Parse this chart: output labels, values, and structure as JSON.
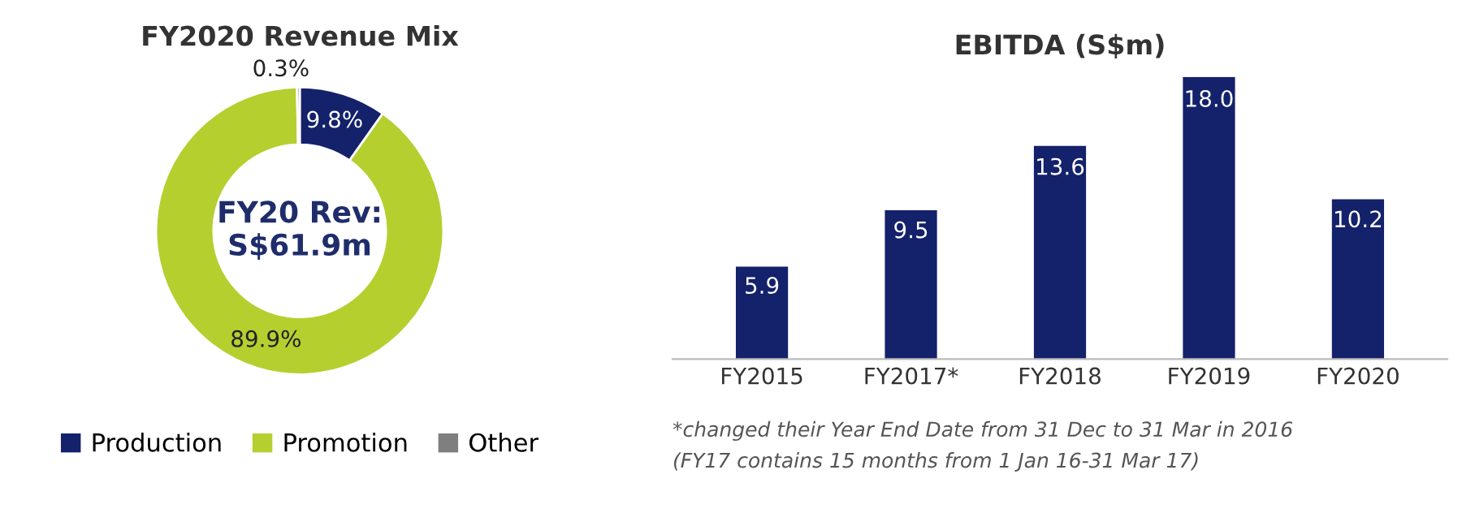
{
  "chart_data": [
    {
      "type": "donut",
      "title": "FY2020 Revenue Mix",
      "categories": [
        "Production",
        "Promotion",
        "Other"
      ],
      "values": [
        9.8,
        89.9,
        0.3
      ],
      "colors": [
        "#14216b",
        "#b5cf2f",
        "#7f7f7f"
      ],
      "value_labels": [
        "9.8%",
        "89.9%",
        "0.3%"
      ],
      "annotations": [
        "FY20 Rev:\nS$61.9m"
      ],
      "legend": "bottom"
    },
    {
      "type": "bar",
      "title": "EBITDA (S$m)",
      "categories": [
        "FY2015",
        "FY2017*",
        "FY2018",
        "FY2019",
        "FY2020"
      ],
      "values": [
        5.9,
        9.5,
        13.6,
        18.0,
        10.2
      ],
      "color": "#14216b",
      "value_labels": [
        "5.9",
        "9.5",
        "13.6",
        "18.0",
        "10.2"
      ],
      "annotations": [
        "*changed their Year End Date from 31 Dec to 31 Mar in 2016",
        "(FY17 contains 15 months from 1 Jan 16-31 Mar 17)"
      ]
    }
  ]
}
